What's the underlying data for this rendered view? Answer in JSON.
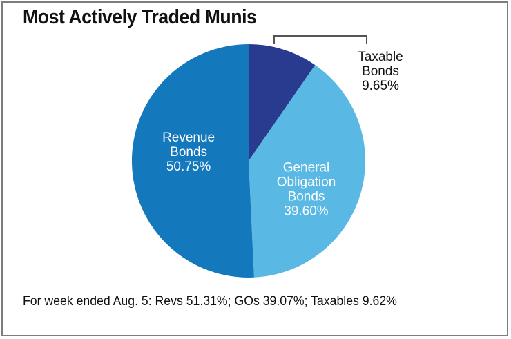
{
  "chart_data": {
    "type": "pie",
    "title": "Most Actively Traded Munis",
    "slices": [
      {
        "label": [
          "Taxable",
          "Bonds",
          "9.65%"
        ],
        "value": 9.65,
        "color": "#293b8e",
        "label_color": "#111111",
        "label_placement": "outside"
      },
      {
        "label": [
          "General",
          "Obligation",
          "Bonds",
          "39.60%"
        ],
        "value": 39.6,
        "color": "#5ab9e4",
        "label_color": "#ffffff",
        "label_placement": "inside"
      },
      {
        "label": [
          "Revenue",
          "Bonds",
          "50.75%"
        ],
        "value": 50.75,
        "color": "#1478bd",
        "label_color": "#ffffff",
        "label_placement": "inside"
      }
    ],
    "start_angle_deg": 0,
    "direction": "clockwise"
  },
  "footnote": "For week ended Aug. 5: Revs 51.31%; GOs 39.07%; Taxables 9.62%"
}
